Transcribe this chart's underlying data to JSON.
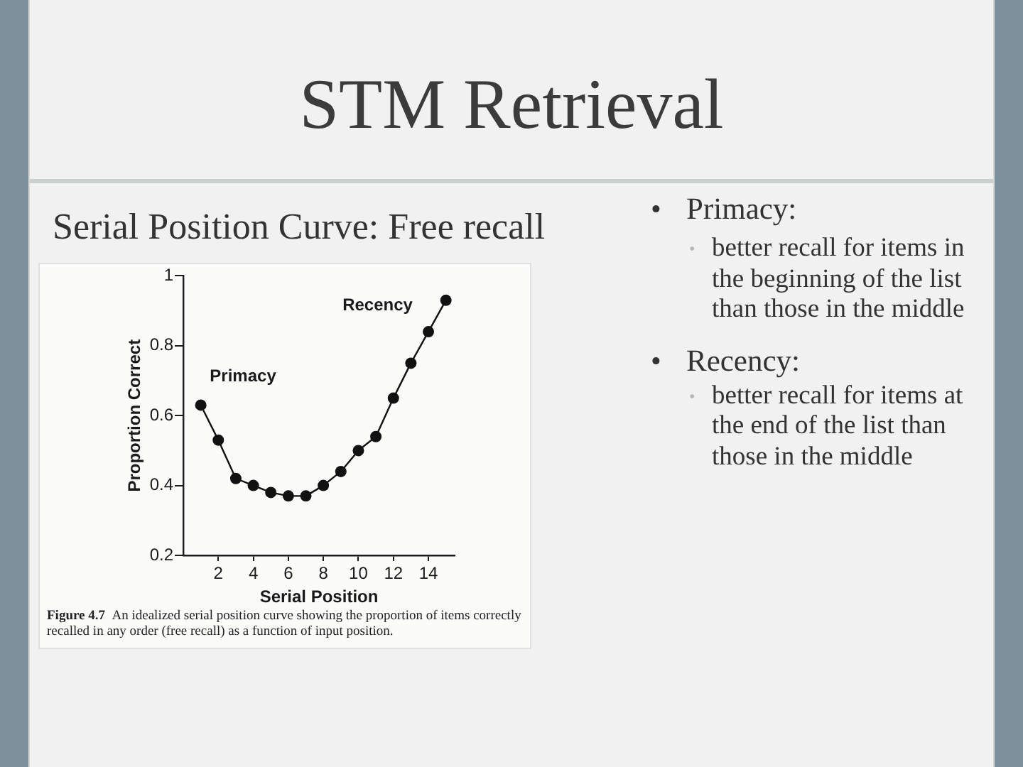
{
  "chart_data": {
    "type": "line",
    "title": "STM Retrieval",
    "subtitle": "Serial Position Curve: Free recall",
    "xlabel": "Serial Position",
    "ylabel": "Proportion Correct",
    "x": [
      1,
      2,
      3,
      4,
      5,
      6,
      7,
      8,
      9,
      10,
      11,
      12,
      13,
      14,
      15
    ],
    "values": [
      0.63,
      0.53,
      0.42,
      0.4,
      0.38,
      0.37,
      0.37,
      0.4,
      0.44,
      0.5,
      0.54,
      0.65,
      0.75,
      0.84,
      0.93
    ],
    "color": "#111111",
    "xlim": [
      0,
      15.5
    ],
    "xticks": [
      2,
      4,
      6,
      8,
      10,
      12,
      14
    ],
    "ylim": [
      0.2,
      1
    ],
    "yticks": [
      0.2,
      0.4,
      0.6,
      0.8,
      1
    ],
    "marker": "circle",
    "line_style": "solid",
    "annotations": [
      "Primacy",
      "Recency",
      "Figure 4.7 An idealized serial position curve showing the proportion of items correctly recalled in any order (free recall) as a function of input position.",
      "• Primacy:",
      "• better recall for items in the beginning of the list than those in the middle",
      "• Recency:",
      "• better recall for items at the end of the list than those in the middle"
    ]
  }
}
